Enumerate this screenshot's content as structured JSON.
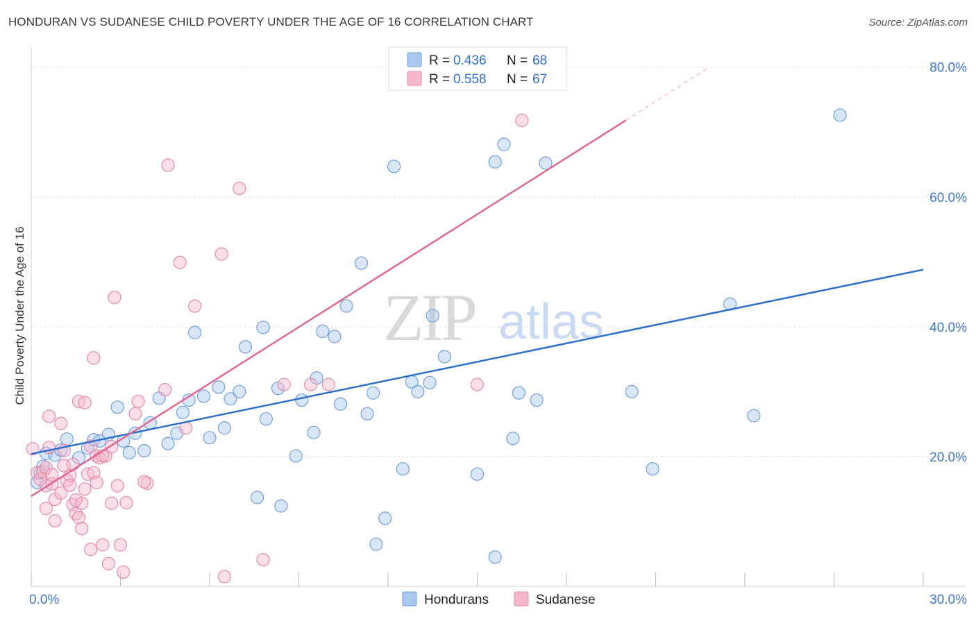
{
  "title": "HONDURAN VS SUDANESE CHILD POVERTY UNDER THE AGE OF 16 CORRELATION CHART",
  "source": "Source: ZipAtlas.com",
  "watermark": {
    "zip": "ZIP",
    "atlas": "atlas"
  },
  "colors": {
    "blue_fill": "#aac8f0",
    "blue_stroke": "#6f9fdc",
    "blue_line": "#2a6fcb",
    "pink_fill": "#f5b8cc",
    "pink_stroke": "#e58aa8",
    "pink_line": "#e06892",
    "grid": "#dddddd",
    "tick_label": "#3d74c9"
  },
  "legend": {
    "rows": [
      {
        "r_label": "R =",
        "r_value": "0.436",
        "n_label": "N =",
        "n_value": "68"
      },
      {
        "r_label": "R =",
        "r_value": "0.558",
        "n_label": "N =",
        "n_value": "67"
      }
    ]
  },
  "chart_data": {
    "type": "scatter",
    "title": "HONDURAN VS SUDANESE CHILD POVERTY UNDER THE AGE OF 16 CORRELATION CHART",
    "ylabel": "Child Poverty Under the Age of 16",
    "xlabel": "",
    "xlim": [
      0,
      30
    ],
    "ylim": [
      0,
      82
    ],
    "x_tick_labels": [
      {
        "value": 0,
        "label": "0.0%"
      },
      {
        "value": 30,
        "label": "30.0%"
      }
    ],
    "y_tick_labels": [
      {
        "value": 20,
        "label": "20.0%"
      },
      {
        "value": 40,
        "label": "40.0%"
      },
      {
        "value": 60,
        "label": "60.0%"
      },
      {
        "value": 80,
        "label": "80.0%"
      }
    ],
    "x_minor_ticks": [
      0,
      3,
      6,
      9,
      12,
      15,
      18,
      21,
      24,
      27,
      30
    ],
    "y_gridlines": [
      20,
      40,
      60,
      80
    ],
    "bottom_legend": [
      "Hondurans",
      "Sudanese"
    ],
    "series": [
      {
        "name": "Hondurans",
        "r": 0.436,
        "n": 68,
        "trend": {
          "x": [
            0,
            30
          ],
          "y": [
            20.4,
            48.8
          ]
        },
        "points": [
          [
            0.2,
            16
          ],
          [
            0.3,
            17.5
          ],
          [
            0.4,
            18.5
          ],
          [
            0.5,
            20.5
          ],
          [
            0.8,
            20.2
          ],
          [
            1.0,
            21
          ],
          [
            1.2,
            22.7
          ],
          [
            1.6,
            19.8
          ],
          [
            1.9,
            21.3
          ],
          [
            2.1,
            22.6
          ],
          [
            2.3,
            22.4
          ],
          [
            2.6,
            23.4
          ],
          [
            2.9,
            27.6
          ],
          [
            3.1,
            22.4
          ],
          [
            3.3,
            20.6
          ],
          [
            3.5,
            23.6
          ],
          [
            3.8,
            20.9
          ],
          [
            4.0,
            25.2
          ],
          [
            4.3,
            29
          ],
          [
            4.6,
            22
          ],
          [
            4.9,
            23.6
          ],
          [
            5.1,
            26.8
          ],
          [
            5.3,
            28.7
          ],
          [
            5.5,
            39.1
          ],
          [
            5.8,
            29.3
          ],
          [
            6.0,
            22.9
          ],
          [
            6.3,
            30.7
          ],
          [
            6.5,
            24.4
          ],
          [
            6.7,
            28.9
          ],
          [
            7.0,
            30
          ],
          [
            7.2,
            36.9
          ],
          [
            7.6,
            13.7
          ],
          [
            7.8,
            39.9
          ],
          [
            7.9,
            25.8
          ],
          [
            8.3,
            30.5
          ],
          [
            8.4,
            12.4
          ],
          [
            8.9,
            20.1
          ],
          [
            9.1,
            28.7
          ],
          [
            9.5,
            23.7
          ],
          [
            9.6,
            32.1
          ],
          [
            9.8,
            39.3
          ],
          [
            10.2,
            38.5
          ],
          [
            10.4,
            28.1
          ],
          [
            10.6,
            43.2
          ],
          [
            11.1,
            49.8
          ],
          [
            11.3,
            26.6
          ],
          [
            11.5,
            29.8
          ],
          [
            11.6,
            6.5
          ],
          [
            11.9,
            10.5
          ],
          [
            12.2,
            64.7
          ],
          [
            12.5,
            18.1
          ],
          [
            12.8,
            31.5
          ],
          [
            13.0,
            30
          ],
          [
            13.4,
            31.4
          ],
          [
            13.5,
            41.7
          ],
          [
            13.9,
            35.4
          ],
          [
            15.0,
            17.3
          ],
          [
            15.6,
            4.5
          ],
          [
            15.6,
            65.4
          ],
          [
            15.9,
            68.1
          ],
          [
            16.2,
            22.8
          ],
          [
            16.4,
            29.8
          ],
          [
            17.0,
            28.7
          ],
          [
            17.3,
            65.2
          ],
          [
            20.2,
            30
          ],
          [
            20.9,
            18.1
          ],
          [
            23.5,
            43.5
          ],
          [
            24.3,
            26.3
          ],
          [
            27.2,
            72.6
          ]
        ]
      },
      {
        "name": "Sudanese",
        "r": 0.558,
        "n": 67,
        "trend": {
          "x": [
            0,
            20
          ],
          "y": [
            13.9,
            71.8
          ]
        },
        "trend_dashed": {
          "x": [
            20,
            22.8
          ],
          "y": [
            71.8,
            80
          ]
        },
        "points": [
          [
            0.05,
            21.2
          ],
          [
            0.2,
            17.5
          ],
          [
            0.3,
            16.5
          ],
          [
            0.4,
            17.7
          ],
          [
            0.5,
            18.3
          ],
          [
            0.5,
            15.5
          ],
          [
            0.5,
            12
          ],
          [
            0.6,
            21.4
          ],
          [
            0.6,
            26.2
          ],
          [
            0.7,
            17.2
          ],
          [
            0.7,
            15.8
          ],
          [
            0.8,
            10.1
          ],
          [
            0.8,
            13.4
          ],
          [
            1.0,
            25.1
          ],
          [
            1.0,
            14.4
          ],
          [
            1.1,
            20.9
          ],
          [
            1.2,
            16.3
          ],
          [
            1.3,
            17.1
          ],
          [
            1.3,
            15.6
          ],
          [
            1.4,
            12.6
          ],
          [
            1.4,
            18.8
          ],
          [
            1.5,
            13.3
          ],
          [
            1.5,
            11.2
          ],
          [
            1.6,
            10.6
          ],
          [
            1.6,
            28.5
          ],
          [
            1.7,
            8.9
          ],
          [
            1.7,
            12.8
          ],
          [
            1.8,
            28.3
          ],
          [
            1.8,
            15
          ],
          [
            1.9,
            17.3
          ],
          [
            2.0,
            21.6
          ],
          [
            2.0,
            5.7
          ],
          [
            2.1,
            35.2
          ],
          [
            2.1,
            17.5
          ],
          [
            2.2,
            20.1
          ],
          [
            2.2,
            16
          ],
          [
            2.3,
            19.8
          ],
          [
            2.4,
            6.4
          ],
          [
            2.5,
            20.1
          ],
          [
            2.6,
            3.5
          ],
          [
            2.7,
            21.5
          ],
          [
            2.7,
            12.8
          ],
          [
            2.8,
            44.5
          ],
          [
            2.9,
            15.5
          ],
          [
            3.0,
            6.4
          ],
          [
            3.1,
            2.2
          ],
          [
            3.2,
            12.9
          ],
          [
            3.5,
            26.6
          ],
          [
            3.6,
            28.5
          ],
          [
            3.9,
            15.9
          ],
          [
            4.5,
            30.3
          ],
          [
            4.6,
            64.9
          ],
          [
            5.0,
            49.9
          ],
          [
            5.2,
            24.4
          ],
          [
            5.5,
            43.2
          ],
          [
            6.4,
            51.2
          ],
          [
            6.5,
            1.5
          ],
          [
            7.0,
            61.3
          ],
          [
            7.8,
            4.1
          ],
          [
            8.5,
            31.1
          ],
          [
            10.0,
            31.1
          ],
          [
            15.0,
            31.1
          ],
          [
            16.5,
            71.8
          ],
          [
            3.8,
            16.1
          ],
          [
            1.1,
            18.6
          ],
          [
            2.4,
            20.1
          ],
          [
            9.4,
            31.1
          ]
        ]
      }
    ]
  }
}
